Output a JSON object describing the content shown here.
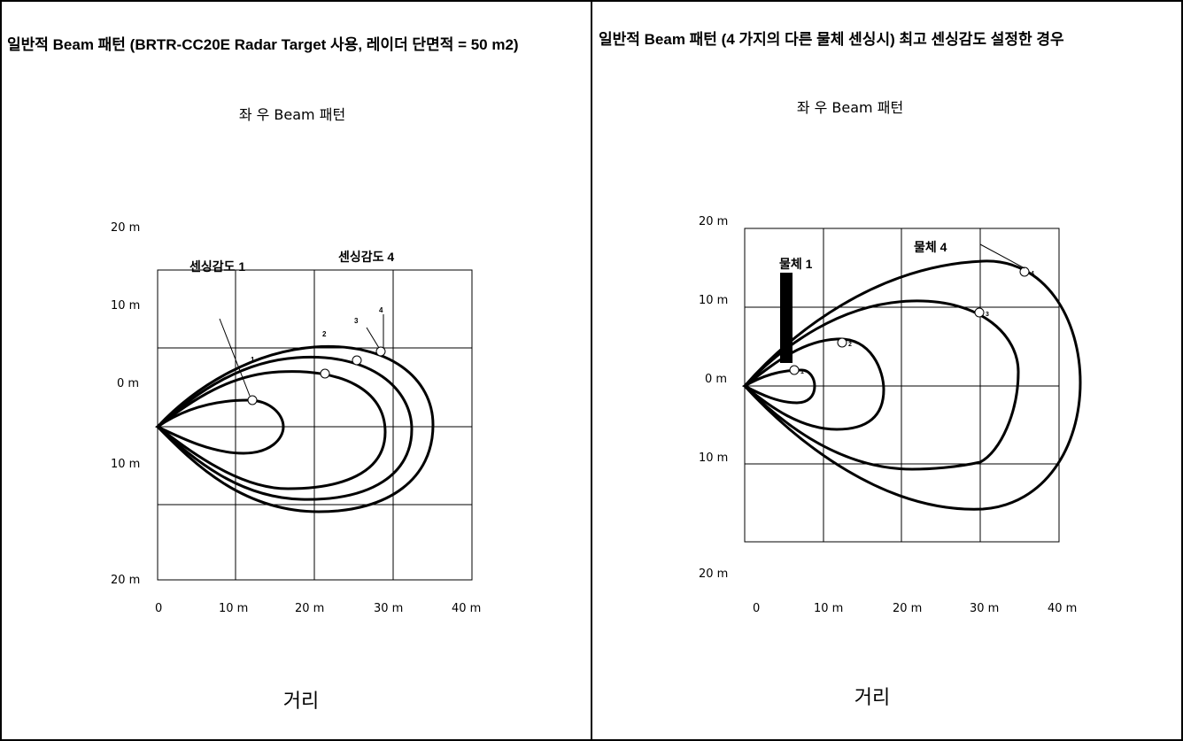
{
  "left": {
    "title": "일반적 Beam 패턴 (BRTR-CC20E Radar Target 사용, 레이더 단면적 = 50 m2)",
    "subtitle": "좌 우 Beam 패턴",
    "y_ticks": [
      "20 m",
      "10 m",
      "0 m",
      "10 m",
      "20 m"
    ],
    "x_ticks": [
      "0",
      "10 m",
      "20 m",
      "30 m",
      "40 m"
    ],
    "xlabel": "거리",
    "annotations": {
      "sens1": "센싱감도 1",
      "sens4": "센싱감도 4",
      "n1": "1",
      "n2": "2",
      "n3": "3",
      "n4": "4"
    }
  },
  "right": {
    "title": "일반적 Beam 패턴 (4 가지의 다른 물체 센싱시) 최고 센싱감도 설정한 경우",
    "subtitle": "좌 우 Beam 패턴",
    "y_ticks": [
      "20 m",
      "10 m",
      "0 m",
      "10 m",
      "20 m"
    ],
    "x_ticks": [
      "0",
      "10 m",
      "20 m",
      "30 m",
      "40 m"
    ],
    "xlabel": "거리",
    "annotations": {
      "obj1": "물체 1",
      "obj4": "물체 4",
      "n1": "1",
      "n2": "2",
      "n3": "3",
      "n4": "4"
    }
  }
}
